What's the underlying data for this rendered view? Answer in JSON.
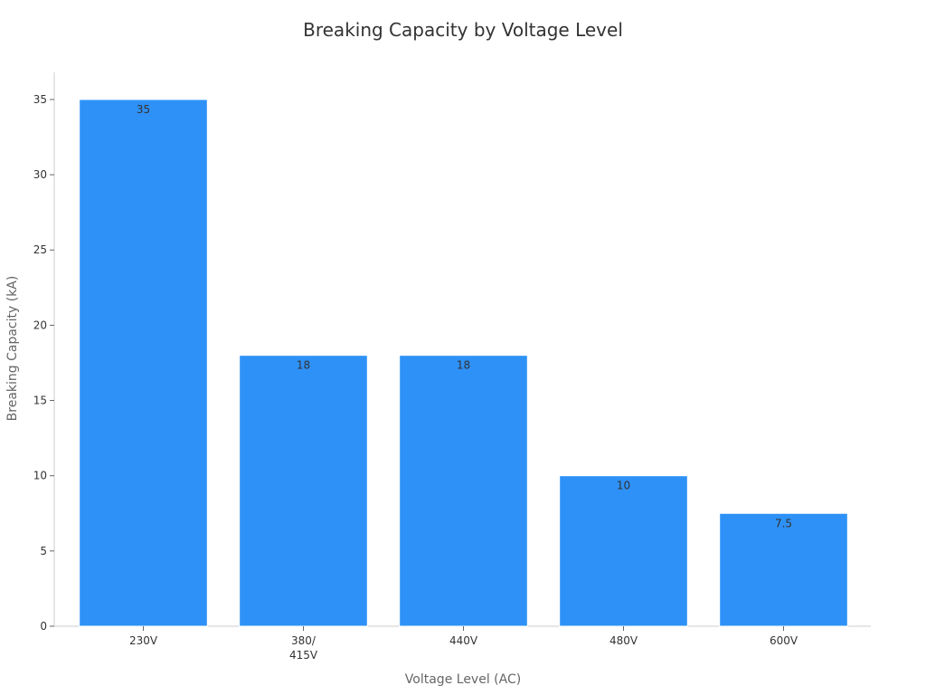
{
  "chart_data": {
    "type": "bar",
    "title": "Breaking Capacity by Voltage Level",
    "xlabel": "Voltage Level (AC)",
    "ylabel": "Breaking Capacity (kA)",
    "categories": [
      [
        "230V"
      ],
      [
        "380/",
        "415V"
      ],
      [
        "440V"
      ],
      [
        "480V"
      ],
      [
        "600V"
      ]
    ],
    "values": [
      35,
      18,
      18,
      10,
      7.5
    ],
    "value_labels": [
      "35",
      "18",
      "18",
      "10",
      "7.5"
    ],
    "ylim": [
      0,
      36.8
    ],
    "yticks": [
      0,
      5,
      10,
      15,
      20,
      25,
      30,
      35
    ],
    "grid": false,
    "bar_color": "#2E91F7",
    "legend": "none"
  }
}
